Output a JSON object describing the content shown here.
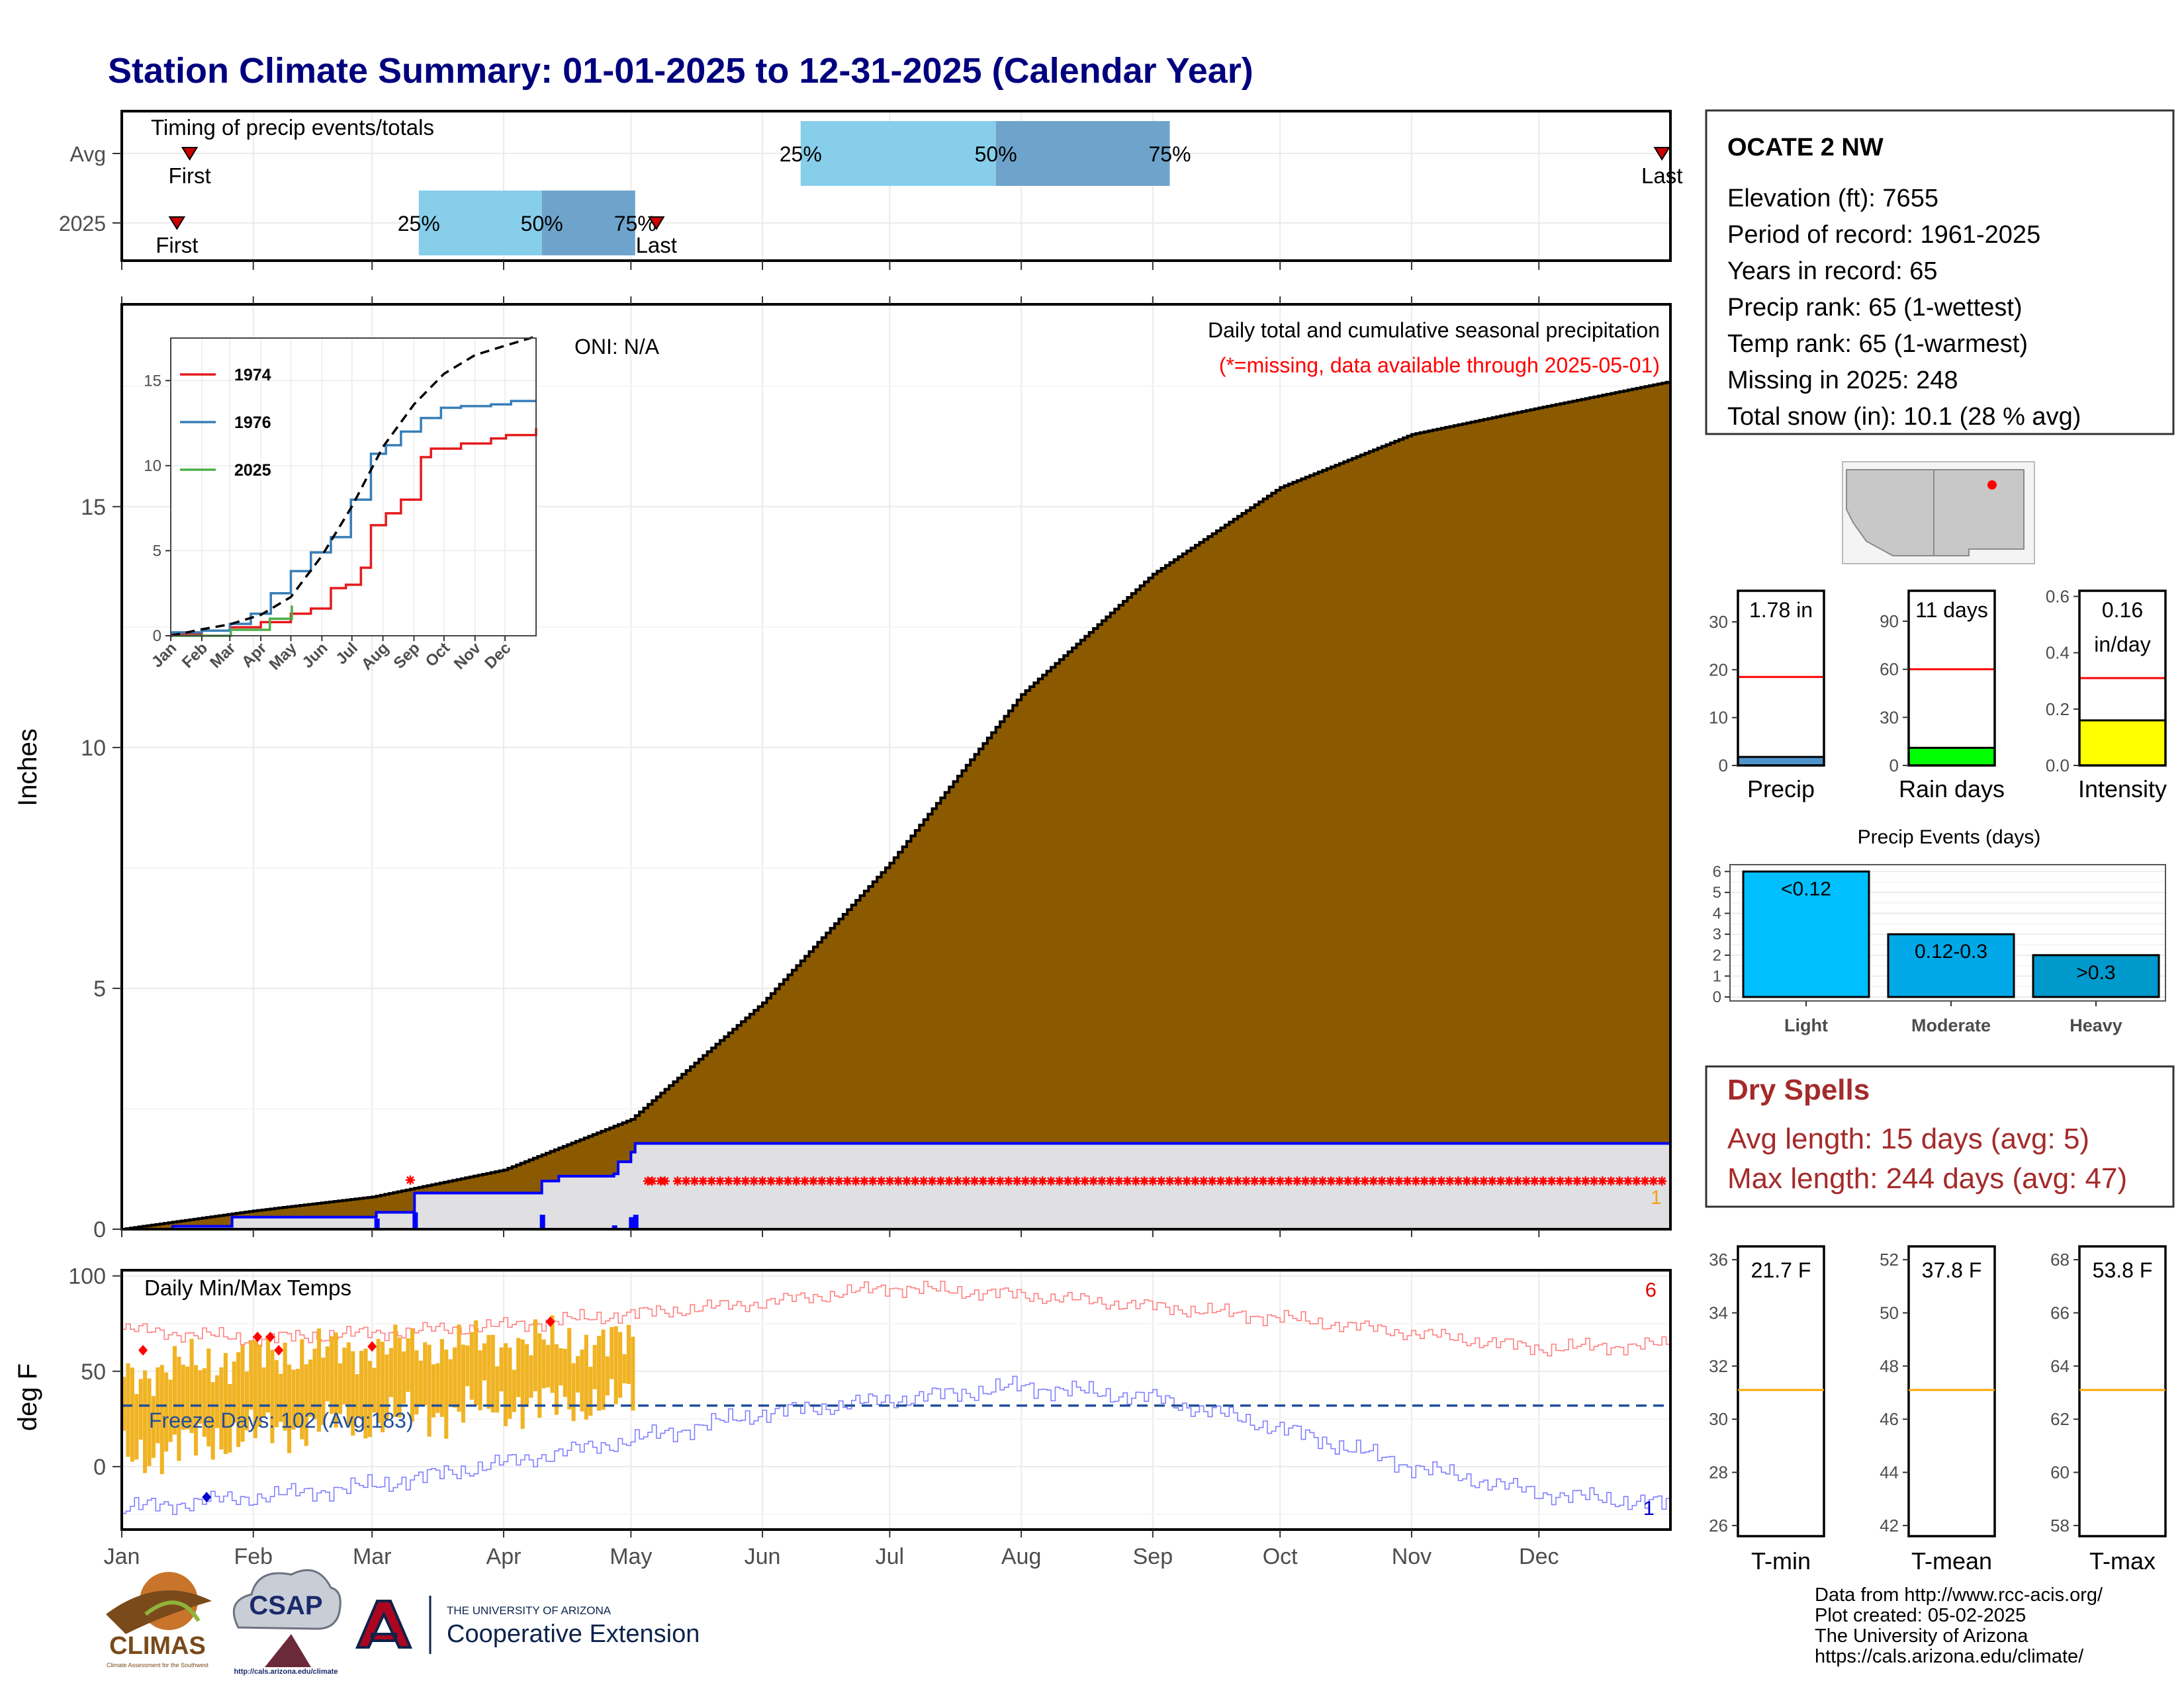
{
  "title": "Station Climate Summary: 01-01-2025 to 12-31-2025 (Calendar Year)",
  "colors": {
    "title": "#00007f",
    "cumulative_avg_fill": "#8b5a00",
    "observed_fill": "#e0e0e2",
    "observed_line": "#0000ff",
    "missing_marker": "#ff0000",
    "quartile_light": "#87ceeb",
    "quartile_dark": "#6ea4cc",
    "tmax_obs": "#f0b323",
    "tmax_avg": "#ff8080",
    "tmin_avg": "#8080ff",
    "ref_line": "#ff0000",
    "precip_bar": "#4f94cd",
    "rain_bar": "#00ff00",
    "intensity_bar": "#ffff00",
    "events_light": "#00bfff",
    "events_moderate": "#00a8e8",
    "events_heavy": "#0099cc",
    "dry_spells": "#a52a2a",
    "temp_ref": "#ffa500"
  },
  "months": [
    "Jan",
    "Feb",
    "Mar",
    "Apr",
    "May",
    "Jun",
    "Jul",
    "Aug",
    "Sep",
    "Oct",
    "Nov",
    "Dec"
  ],
  "timing": {
    "title": "Timing of precip events/totals",
    "rows": [
      {
        "label": "Avg",
        "first_doy": 16,
        "last_doy": 363,
        "q25_doy": 160,
        "q50_doy": 206,
        "q75_doy": 247
      },
      {
        "label": "2025",
        "first_doy": 13,
        "last_doy": 126,
        "q25_doy": 70,
        "q50_doy": 99,
        "q75_doy": 121
      }
    ],
    "first_label": "First",
    "last_label": "Last",
    "q_labels": [
      "25%",
      "50%",
      "75%"
    ]
  },
  "precip_chart": {
    "ylabel": "Inches",
    "yticks": [
      0,
      5,
      10,
      15
    ],
    "ylim": [
      0,
      19.2
    ],
    "oni": "ONI: N/A",
    "caption": "Daily total and cumulative seasonal precipitation",
    "missing_note": "(*=missing, data available through 2025-05-01)",
    "missing_count": "1",
    "avg_cumulative": [
      [
        0,
        0
      ],
      [
        31,
        0.38
      ],
      [
        59,
        0.67
      ],
      [
        90,
        1.23
      ],
      [
        120,
        2.28
      ],
      [
        151,
        4.7
      ],
      [
        181,
        7.6
      ],
      [
        212,
        11.1
      ],
      [
        243,
        13.6
      ],
      [
        273,
        15.4
      ],
      [
        304,
        16.5
      ],
      [
        334,
        17.05
      ],
      [
        365,
        17.6
      ]
    ],
    "obs_cumulative": [
      [
        0,
        0
      ],
      [
        12,
        0.06
      ],
      [
        26,
        0.25
      ],
      [
        59,
        0.25
      ],
      [
        60,
        0.35
      ],
      [
        69,
        0.75
      ],
      [
        99,
        1.0
      ],
      [
        103,
        1.1
      ],
      [
        116,
        1.15
      ],
      [
        117,
        1.4
      ],
      [
        120,
        1.6
      ],
      [
        121,
        1.78
      ],
      [
        365,
        1.78
      ]
    ],
    "daily_bars": [
      [
        60,
        0.22
      ],
      [
        69,
        0.35
      ],
      [
        99,
        0.3
      ],
      [
        116,
        0.08
      ],
      [
        120,
        0.25
      ],
      [
        121,
        0.3
      ]
    ],
    "missing_days": [
      68,
      124,
      125,
      127,
      128
    ],
    "missing_from": 121
  },
  "inset": {
    "yticks": [
      0,
      5,
      10,
      15
    ],
    "ylim": [
      0,
      17.5
    ],
    "xticks": [
      "Jan",
      "Feb",
      "Mar",
      "Apr",
      "May",
      "Jun",
      "Jul",
      "Aug",
      "Sep",
      "Oct",
      "Nov",
      "Dec"
    ],
    "series": [
      {
        "name": "1974",
        "color": "#e41a1c",
        "points": [
          [
            0,
            0.1
          ],
          [
            31,
            0.3
          ],
          [
            59,
            0.5
          ],
          [
            90,
            0.8
          ],
          [
            120,
            1.3
          ],
          [
            140,
            1.6
          ],
          [
            160,
            2.8
          ],
          [
            175,
            3.0
          ],
          [
            190,
            4.0
          ],
          [
            200,
            6.5
          ],
          [
            215,
            7.2
          ],
          [
            230,
            8.0
          ],
          [
            250,
            10.5
          ],
          [
            260,
            11.0
          ],
          [
            290,
            11.3
          ],
          [
            320,
            11.6
          ],
          [
            335,
            11.8
          ],
          [
            365,
            12.2
          ]
        ]
      },
      {
        "name": "1976",
        "color": "#377eb8",
        "points": [
          [
            0,
            0.2
          ],
          [
            31,
            0.3
          ],
          [
            59,
            0.7
          ],
          [
            80,
            1.3
          ],
          [
            100,
            2.5
          ],
          [
            120,
            3.8
          ],
          [
            140,
            4.9
          ],
          [
            160,
            5.8
          ],
          [
            180,
            8.0
          ],
          [
            200,
            10.7
          ],
          [
            215,
            11.2
          ],
          [
            230,
            12.0
          ],
          [
            250,
            12.8
          ],
          [
            270,
            13.4
          ],
          [
            290,
            13.5
          ],
          [
            320,
            13.6
          ],
          [
            340,
            13.8
          ],
          [
            365,
            13.8
          ]
        ]
      },
      {
        "name": "2025",
        "color": "#4daf4a",
        "points": [
          [
            0,
            0
          ],
          [
            60,
            0.35
          ],
          [
            99,
            1.0
          ],
          [
            121,
            1.78
          ]
        ]
      }
    ],
    "avg_points": [
      [
        0,
        0
      ],
      [
        31,
        0.38
      ],
      [
        59,
        0.67
      ],
      [
        90,
        1.23
      ],
      [
        120,
        2.28
      ],
      [
        151,
        4.7
      ],
      [
        181,
        7.6
      ],
      [
        212,
        11.1
      ],
      [
        243,
        13.6
      ],
      [
        273,
        15.4
      ],
      [
        304,
        16.5
      ],
      [
        334,
        17.05
      ],
      [
        365,
        17.6
      ]
    ]
  },
  "station": {
    "name": "OCATE 2 NW",
    "lines": [
      "Elevation (ft): 7655",
      "Period of record: 1961-2025",
      "Years in record: 65",
      "Precip rank: 65 (1-wettest)",
      "Temp rank: 65 (1-warmest)",
      "Missing in 2025: 248",
      "Total snow (in): 10.1 (28 % avg)"
    ]
  },
  "minicharts": {
    "precip": {
      "label": "Precip",
      "value_label": "1.78 in",
      "yticks": [
        0,
        10,
        20,
        30
      ],
      "ymax": 36.5,
      "value": 1.78,
      "ref": 18.5
    },
    "rain_days": {
      "label": "Rain days",
      "value_label": "11 days",
      "yticks": [
        0,
        30,
        60,
        90
      ],
      "ymax": 109,
      "value": 11,
      "ref": 60
    },
    "intensity": {
      "label": "Intensity",
      "value_label": "0.16",
      "value_unit": "in/day",
      "yticks": [
        "0.0",
        "0.2",
        "0.4",
        "0.6"
      ],
      "ymax": 0.62,
      "value": 0.16,
      "ref": 0.31
    }
  },
  "events": {
    "title": "Precip Events (days)",
    "yticks": [
      0,
      1,
      2,
      3,
      4,
      5,
      6
    ],
    "categories": [
      "Light",
      "Moderate",
      "Heavy"
    ],
    "bar_labels": [
      "<0.12",
      "0.12-0.3",
      ">0.3"
    ],
    "values": [
      6,
      3,
      2
    ]
  },
  "dry_spells": {
    "title": "Dry Spells",
    "avg_line": "Avg length: 15 days (avg: 5)",
    "max_line": "Max length: 244 days (avg: 47)"
  },
  "temp_chart": {
    "title": "Daily Min/Max Temps",
    "ylabel": "deg F",
    "yticks": [
      0,
      50,
      100
    ],
    "ylim": [
      -33,
      103
    ],
    "freeze_line": 32,
    "freeze_label": "Freeze Days: 102 (Avg:183)",
    "record_high_count": "6",
    "record_low_count": "1",
    "tmax_avg": [
      [
        0,
        72
      ],
      [
        31,
        67
      ],
      [
        59,
        70
      ],
      [
        90,
        74
      ],
      [
        120,
        80
      ],
      [
        151,
        86
      ],
      [
        181,
        94
      ],
      [
        212,
        90
      ],
      [
        243,
        84
      ],
      [
        273,
        78
      ],
      [
        304,
        70
      ],
      [
        334,
        62
      ],
      [
        365,
        64
      ]
    ],
    "tmin_avg": [
      [
        0,
        -22
      ],
      [
        31,
        -16
      ],
      [
        59,
        -10
      ],
      [
        90,
        2
      ],
      [
        120,
        14
      ],
      [
        151,
        28
      ],
      [
        181,
        35
      ],
      [
        212,
        42
      ],
      [
        243,
        36
      ],
      [
        273,
        20
      ],
      [
        304,
        0
      ],
      [
        334,
        -14
      ],
      [
        365,
        -20
      ]
    ],
    "obs_tmax": [
      [
        0,
        48
      ],
      [
        31,
        58
      ],
      [
        59,
        62
      ],
      [
        90,
        65
      ],
      [
        120,
        65
      ]
    ],
    "obs_tmin": [
      [
        0,
        5
      ],
      [
        31,
        18
      ],
      [
        59,
        25
      ],
      [
        90,
        32
      ],
      [
        120,
        35
      ]
    ],
    "obs_days": 120,
    "record_highs": [
      [
        5,
        61
      ],
      [
        32,
        68
      ],
      [
        35,
        68
      ],
      [
        37,
        61
      ],
      [
        59,
        63
      ],
      [
        101,
        76
      ]
    ],
    "record_lows": [
      [
        20,
        -16
      ]
    ]
  },
  "temp_minis": {
    "tmin": {
      "label": "T-min",
      "value_label": "21.7 F",
      "yticks": [
        26,
        28,
        30,
        32,
        34,
        36
      ],
      "ylim": [
        25.6,
        36.5
      ],
      "ref": 31.1
    },
    "tmean": {
      "label": "T-mean",
      "value_label": "37.8 F",
      "yticks": [
        42,
        44,
        46,
        48,
        50,
        52
      ],
      "ylim": [
        41.6,
        52.5
      ],
      "ref": 47.1
    },
    "tmax": {
      "label": "T-max",
      "value_label": "53.8 F",
      "yticks": [
        58,
        60,
        62,
        64,
        66,
        68
      ],
      "ylim": [
        57.6,
        68.5
      ],
      "ref": 63.1
    }
  },
  "credits": [
    "Data from http://www.rcc-acis.org/",
    "Plot created: 05-02-2025",
    "The University of Arizona",
    "https://cals.arizona.edu/climate/"
  ],
  "logos": {
    "climas": "CLIMAS",
    "climas_sub": "Climate Assessment for the Southwest",
    "csap": "CSAP",
    "csap_url": "http://cals.arizona.edu/climate",
    "ua_small": "THE UNIVERSITY OF ARIZONA",
    "ua_big": "Cooperative Extension"
  }
}
